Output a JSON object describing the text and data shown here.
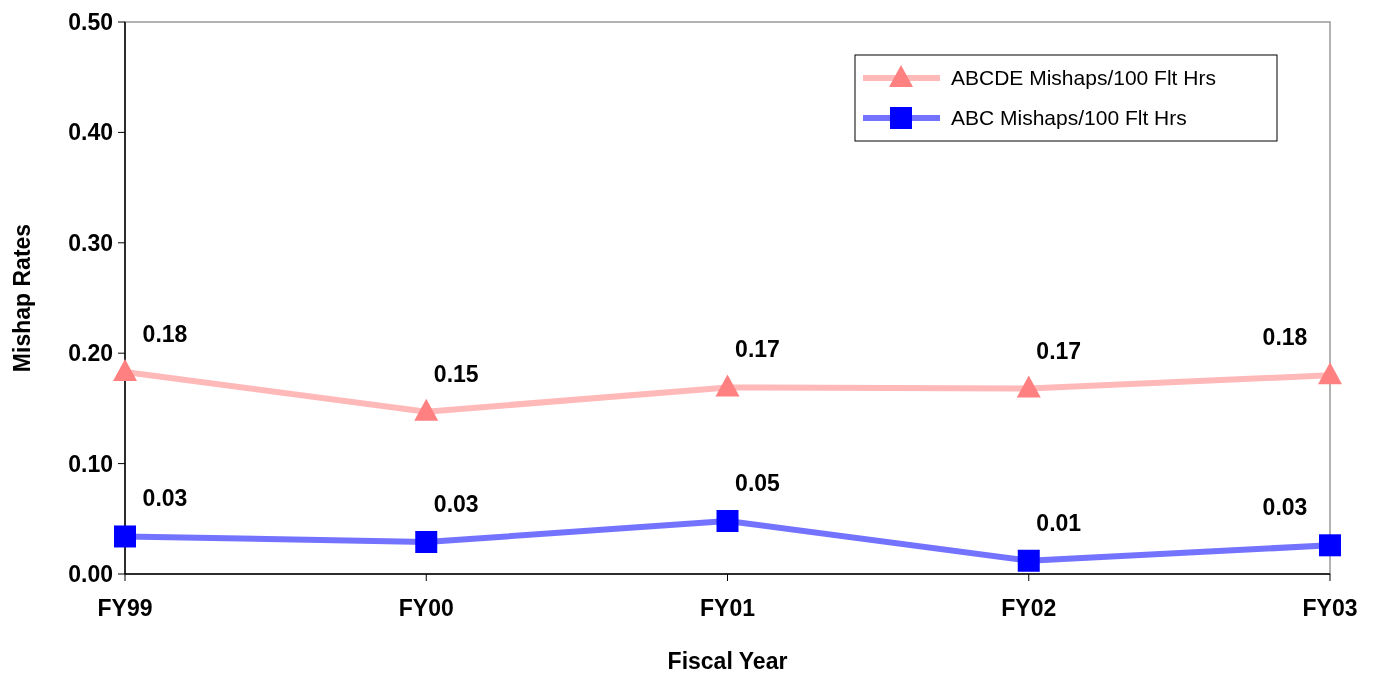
{
  "chart_data": {
    "type": "line",
    "xlabel": "Fiscal Year",
    "ylabel": "Mishap Rates",
    "categories": [
      "FY99",
      "FY00",
      "FY01",
      "FY02",
      "FY03"
    ],
    "series": [
      {
        "name": "ABCDE Mishaps/100 Flt Hrs",
        "color": "#ff8080",
        "marker": "triangle",
        "values": [
          0.183,
          0.147,
          0.169,
          0.168,
          0.18
        ],
        "value_labels": [
          "0.18",
          "0.15",
          "0.17",
          "0.17",
          "0.18"
        ]
      },
      {
        "name": "ABC Mishaps/100 Flt Hrs",
        "color": "#0000ff",
        "marker": "square",
        "values": [
          0.034,
          0.029,
          0.048,
          0.012,
          0.026
        ],
        "value_labels": [
          "0.03",
          "0.03",
          "0.05",
          "0.01",
          "0.03"
        ]
      }
    ],
    "ylim": [
      0,
      0.5
    ],
    "yticks": [
      {
        "value": 0,
        "label": "0.00"
      },
      {
        "value": 0.1,
        "label": "0.10"
      },
      {
        "value": 0.2,
        "label": "0.20"
      },
      {
        "value": 0.3,
        "label": "0.30"
      },
      {
        "value": 0.4,
        "label": "0.40"
      },
      {
        "value": 0.5,
        "label": "0.50"
      }
    ],
    "legend": "top right",
    "grid": false
  }
}
